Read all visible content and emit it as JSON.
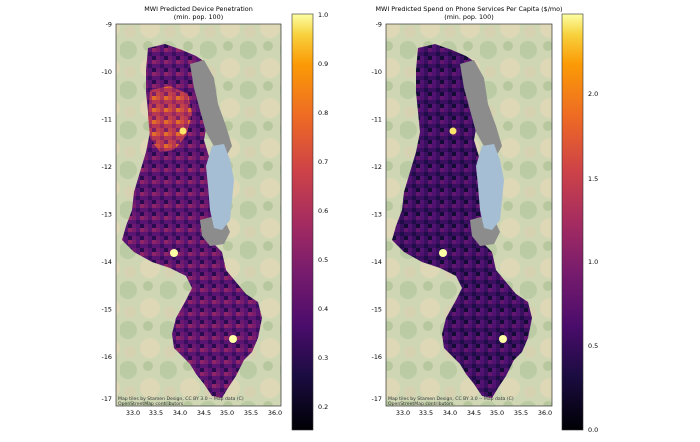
{
  "panels": [
    {
      "title": "MWI Predicted Device Penetration",
      "subtitle": "(min. pop. 100)",
      "yticks": [
        "-9",
        "-10",
        "-11",
        "-12",
        "-13",
        "-14",
        "-15",
        "-16",
        "-17"
      ],
      "xticks": [
        "33.0",
        "33.5",
        "34.0",
        "34.5",
        "35.0",
        "35.5",
        "36.0"
      ],
      "attribution_line1": "Map tiles by Stamen Design, CC BY 3.0 -- Map data (C)",
      "attribution_line2": "OpenStreetMap contributors",
      "colorbar_ticks": [
        "1.0",
        "0.9",
        "0.8",
        "0.7",
        "0.6",
        "0.5",
        "0.4",
        "0.3",
        "0.2"
      ],
      "colorbar_range": [
        0.15,
        1.0
      ]
    },
    {
      "title": "MWI Predicted Spend on Phone Services Per Capita ($/mo)",
      "subtitle": "(min. pop. 100)",
      "yticks": [
        "-9",
        "-10",
        "-11",
        "-12",
        "-13",
        "-14",
        "-15",
        "-16",
        "-17"
      ],
      "xticks": [
        "33.0",
        "33.5",
        "34.0",
        "34.5",
        "35.0",
        "35.5",
        "36.0"
      ],
      "attribution_line1": "Map tiles by Stamen Design, CC BY 3.0 -- Map data (C)",
      "attribution_line2": "OpenStreetMap contributors",
      "colorbar_ticks": [
        "2.0",
        "1.5",
        "1.0",
        "0.5",
        "0.0"
      ],
      "colorbar_range": [
        0.0,
        2.4
      ]
    }
  ],
  "colors": {
    "terrain_green": "#a7bf8f",
    "terrain_tan": "#dcd3b2",
    "lake_blue": "#a6bed3",
    "masked_grey": "#8c8c8c"
  }
}
